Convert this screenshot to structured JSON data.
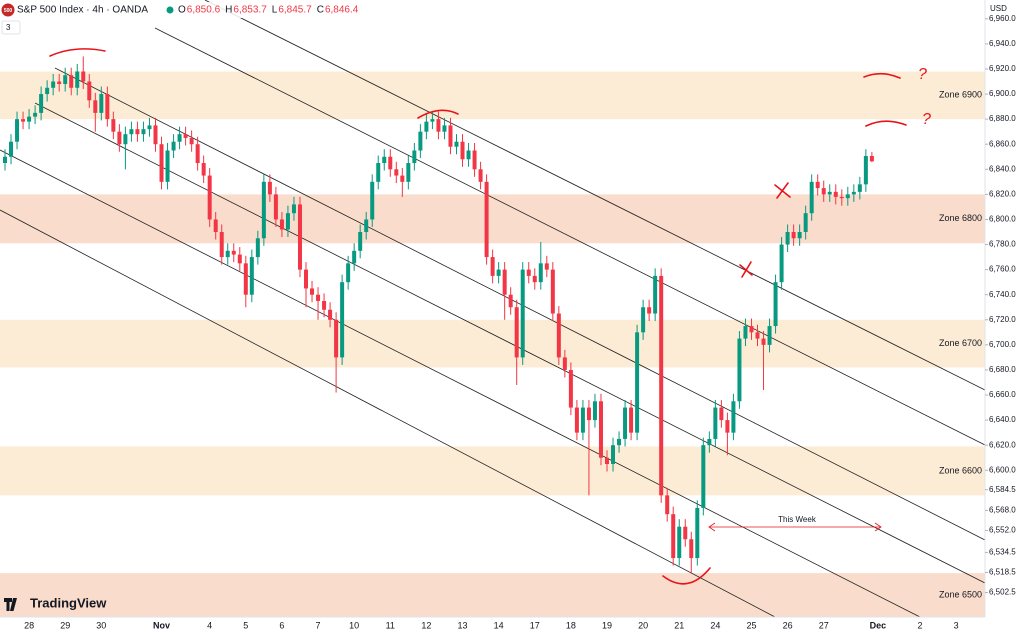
{
  "header": {
    "symbol": "S&P 500 Index · 4h · OANDA",
    "badge": "500",
    "ohlc": [
      {
        "key": "O",
        "value": "6,850.6"
      },
      {
        "key": "H",
        "value": "6,853.7"
      },
      {
        "key": "L",
        "value": "6,845.7"
      },
      {
        "key": "C",
        "value": "6,846.4"
      }
    ],
    "indicators": "3",
    "currency": "USD",
    "brand": "TradingView"
  },
  "chart_data": {
    "type": "candlestick",
    "up_color": "#089981",
    "down_color": "#f23645",
    "grid": false,
    "categories": [
      null,
      null,
      null,
      null,
      "28",
      null,
      null,
      null,
      null,
      null,
      "29",
      null,
      null,
      null,
      null,
      null,
      "30",
      null,
      null,
      null,
      null,
      null,
      null,
      null,
      null,
      null,
      "Nov",
      null,
      null,
      null,
      null,
      null,
      null,
      null,
      "4",
      null,
      null,
      null,
      null,
      null,
      "5",
      null,
      null,
      null,
      null,
      null,
      "6",
      null,
      null,
      null,
      null,
      null,
      "7",
      null,
      null,
      null,
      null,
      null,
      "10",
      null,
      null,
      null,
      null,
      null,
      "11",
      null,
      null,
      null,
      null,
      null,
      "12",
      null,
      null,
      null,
      null,
      null,
      "13",
      null,
      null,
      null,
      null,
      null,
      "14",
      null,
      null,
      null,
      null,
      null,
      "17",
      null,
      null,
      null,
      null,
      null,
      "18",
      null,
      null,
      null,
      null,
      null,
      "19",
      null,
      null,
      null,
      null,
      null,
      "20",
      null,
      null,
      null,
      null,
      null,
      "21",
      null,
      null,
      null,
      null,
      null,
      "24",
      null,
      null,
      null,
      null,
      null,
      "25",
      null,
      null,
      null,
      null,
      null,
      "26",
      null,
      null,
      null,
      null,
      null,
      "27",
      null,
      null,
      null,
      null,
      null,
      null,
      null,
      null,
      "Dec",
      null,
      null,
      null,
      null,
      null,
      null,
      "2",
      null,
      null,
      null,
      null,
      null,
      "3",
      null
    ],
    "open": [
      6845,
      6850,
      6862,
      6880,
      6878,
      6882,
      6885,
      6900,
      6905,
      6910,
      6908,
      6915,
      6905,
      6918,
      6910,
      6895,
      6885,
      6900,
      6880,
      6870,
      6860,
      6868,
      6872,
      6868,
      6872,
      6875,
      6860,
      6830,
      6855,
      6862,
      6868,
      6865,
      6860,
      6845,
      6835,
      6800,
      6790,
      6770,
      6775,
      6772,
      6765,
      6740,
      6770,
      6785,
      6830,
      6820,
      6800,
      6792,
      6805,
      6812,
      6760,
      6745,
      6740,
      6735,
      6728,
      6720,
      6690,
      6750,
      6765,
      6775,
      6790,
      6800,
      6830,
      6845,
      6850,
      6840,
      6835,
      6830,
      6845,
      6855,
      6870,
      6878,
      6880,
      6870,
      6875,
      6858,
      6862,
      6848,
      6855,
      6840,
      6830,
      6770,
      6755,
      6760,
      6740,
      6730,
      6690,
      6760,
      6755,
      6750,
      6765,
      6760,
      6725,
      6690,
      6680,
      6650,
      6630,
      6650,
      6640,
      6655,
      6610,
      6605,
      6620,
      6625,
      6650,
      6630,
      6710,
      6730,
      6725,
      6755,
      6580,
      6565,
      6530,
      6555,
      6545,
      6530,
      6570,
      6620,
      6625,
      6650,
      6640,
      6630,
      6655,
      6705,
      6715,
      6710,
      6705,
      6700,
      6715,
      6750,
      6780,
      6790,
      6785,
      6790,
      6805,
      6830,
      6825,
      6820,
      6822,
      6818,
      6817,
      6820,
      6822,
      6828,
      6850.6,
      null,
      null,
      null,
      null,
      null,
      null,
      null,
      null,
      null,
      null,
      null,
      null,
      null,
      null,
      null
    ],
    "high": [
      6856,
      6868,
      6886,
      6886,
      6888,
      6891,
      6906,
      6911,
      6916,
      6916,
      6921,
      6921,
      6924,
      6930,
      6916,
      6901,
      6906,
      6906,
      6886,
      6876,
      6874,
      6878,
      6878,
      6878,
      6881,
      6881,
      6866,
      6861,
      6868,
      6874,
      6874,
      6871,
      6866,
      6851,
      6841,
      6806,
      6796,
      6781,
      6781,
      6778,
      6771,
      6776,
      6791,
      6836,
      6836,
      6826,
      6806,
      6811,
      6818,
      6818,
      6766,
      6751,
      6746,
      6741,
      6734,
      6726,
      6756,
      6771,
      6781,
      6796,
      6806,
      6836,
      6851,
      6856,
      6856,
      6846,
      6841,
      6851,
      6861,
      6876,
      6884,
      6886,
      6886,
      6881,
      6881,
      6868,
      6868,
      6861,
      6861,
      6846,
      6836,
      6776,
      6766,
      6766,
      6746,
      6736,
      6766,
      6766,
      6761,
      6782,
      6771,
      6766,
      6731,
      6696,
      6686,
      6656,
      6656,
      6656,
      6661,
      6661,
      6616,
      6626,
      6631,
      6656,
      6656,
      6716,
      6736,
      6736,
      6761,
      6761,
      6586,
      6571,
      6561,
      6561,
      6551,
      6576,
      6626,
      6631,
      6656,
      6656,
      6646,
      6661,
      6711,
      6721,
      6721,
      6716,
      6711,
      6721,
      6756,
      6786,
      6796,
      6796,
      6796,
      6811,
      6836,
      6836,
      6831,
      6828,
      6828,
      6824,
      6826,
      6828,
      6834,
      6856,
      6853.7,
      null,
      null,
      null,
      null,
      null,
      null,
      null,
      null,
      null,
      null,
      null,
      null,
      null,
      null,
      null
    ],
    "low": [
      6839,
      6844,
      6856,
      6872,
      6872,
      6876,
      6879,
      6894,
      6899,
      6902,
      6902,
      6899,
      6899,
      6904,
      6889,
      6870,
      6879,
      6874,
      6864,
      6854,
      6840,
      6862,
      6862,
      6862,
      6866,
      6854,
      6824,
      6824,
      6849,
      6856,
      6859,
      6854,
      6839,
      6829,
      6794,
      6784,
      6764,
      6764,
      6766,
      6759,
      6730,
      6734,
      6764,
      6779,
      6814,
      6794,
      6786,
      6786,
      6799,
      6754,
      6730,
      6734,
      6720,
      6722,
      6714,
      6662,
      6684,
      6744,
      6759,
      6769,
      6784,
      6794,
      6824,
      6839,
      6834,
      6829,
      6818,
      6824,
      6839,
      6849,
      6864,
      6872,
      6864,
      6864,
      6852,
      6852,
      6842,
      6842,
      6834,
      6824,
      6764,
      6749,
      6749,
      6720,
      6724,
      6668,
      6684,
      6749,
      6744,
      6744,
      6754,
      6719,
      6684,
      6674,
      6644,
      6624,
      6624,
      6580,
      6634,
      6604,
      6599,
      6599,
      6614,
      6619,
      6624,
      6624,
      6704,
      6719,
      6719,
      6574,
      6559,
      6524,
      6524,
      6539,
      6518,
      6524,
      6564,
      6614,
      6619,
      6634,
      6612,
      6624,
      6649,
      6699,
      6704,
      6699,
      6664,
      6694,
      6709,
      6744,
      6774,
      6779,
      6779,
      6784,
      6799,
      6819,
      6814,
      6814,
      6812,
      6811,
      6811,
      6814,
      6816,
      6822,
      6845.7,
      null,
      null,
      null,
      null,
      null,
      null,
      null,
      null,
      null,
      null,
      null,
      null,
      null,
      null,
      null
    ],
    "close": [
      6850,
      6862,
      6880,
      6878,
      6882,
      6885,
      6900,
      6905,
      6910,
      6908,
      6915,
      6905,
      6918,
      6910,
      6895,
      6885,
      6900,
      6880,
      6870,
      6860,
      6868,
      6872,
      6868,
      6872,
      6875,
      6860,
      6830,
      6855,
      6862,
      6868,
      6865,
      6860,
      6845,
      6835,
      6800,
      6790,
      6770,
      6775,
      6772,
      6765,
      6740,
      6770,
      6785,
      6830,
      6820,
      6800,
      6792,
      6805,
      6812,
      6760,
      6745,
      6740,
      6735,
      6728,
      6720,
      6690,
      6750,
      6765,
      6775,
      6790,
      6800,
      6830,
      6845,
      6850,
      6840,
      6835,
      6830,
      6845,
      6855,
      6870,
      6878,
      6880,
      6870,
      6875,
      6858,
      6862,
      6848,
      6855,
      6840,
      6830,
      6770,
      6755,
      6760,
      6740,
      6730,
      6690,
      6760,
      6755,
      6750,
      6765,
      6760,
      6725,
      6690,
      6680,
      6650,
      6630,
      6650,
      6640,
      6655,
      6610,
      6605,
      6620,
      6625,
      6650,
      6630,
      6710,
      6730,
      6725,
      6755,
      6580,
      6565,
      6530,
      6555,
      6545,
      6530,
      6570,
      6620,
      6625,
      6650,
      6640,
      6630,
      6655,
      6705,
      6715,
      6710,
      6705,
      6700,
      6715,
      6750,
      6780,
      6790,
      6785,
      6790,
      6805,
      6830,
      6825,
      6820,
      6822,
      6818,
      6817,
      6820,
      6822,
      6828,
      6850.6,
      6846.4,
      null,
      null,
      null,
      null,
      null,
      null,
      null,
      null,
      null,
      null,
      null,
      null,
      null,
      null,
      null
    ],
    "ylim": [
      6483,
      6975
    ],
    "yticks": [
      {
        "value": 6960,
        "label": "6,960.0"
      },
      {
        "value": 6940,
        "label": "6,940.0"
      },
      {
        "value": 6920,
        "label": "6,920.0"
      },
      {
        "value": 6900,
        "label": "6,900.0"
      },
      {
        "value": 6880,
        "label": "6,880.0"
      },
      {
        "value": 6860,
        "label": "6,860.0"
      },
      {
        "value": 6840,
        "label": "6,840.0"
      },
      {
        "value": 6820,
        "label": "6,820.0"
      },
      {
        "value": 6800,
        "label": "6,800.0"
      },
      {
        "value": 6780,
        "label": "6,780.0"
      },
      {
        "value": 6760,
        "label": "6,760.0"
      },
      {
        "value": 6740,
        "label": "6,740.0"
      },
      {
        "value": 6720,
        "label": "6,720.0"
      },
      {
        "value": 6700,
        "label": "6,700.0"
      },
      {
        "value": 6680,
        "label": "6,680.0"
      },
      {
        "value": 6660,
        "label": "6,660.0"
      },
      {
        "value": 6640,
        "label": "6,640.0"
      },
      {
        "value": 6620,
        "label": "6,620.0"
      },
      {
        "value": 6600,
        "label": "6,600.0"
      },
      {
        "value": 6584.5,
        "label": "6,584.5"
      },
      {
        "value": 6568,
        "label": "6,568.0"
      },
      {
        "value": 6552,
        "label": "6,552.0"
      },
      {
        "value": 6534.5,
        "label": "6,534.5"
      },
      {
        "value": 6518.5,
        "label": "6,518.5"
      },
      {
        "value": 6502.5,
        "label": "6,502.5"
      }
    ],
    "zones": [
      {
        "label": "Zone 6900",
        "from": 6880,
        "to": 6918,
        "color": "#fdecd5"
      },
      {
        "label": "Zone 6800",
        "from": 6781,
        "to": 6820,
        "color": "#f9dccb"
      },
      {
        "label": "Zone 6700",
        "from": 6682,
        "to": 6720,
        "color": "#fdecd5"
      },
      {
        "label": "Zone 6600",
        "from": 6580,
        "to": 6619,
        "color": "#fdecd5"
      },
      {
        "label": "Zone 6500",
        "from": 6483,
        "to": 6518,
        "color": "#f9dccb"
      }
    ],
    "annotations": {
      "this_week": "This Week",
      "question": "?"
    }
  }
}
